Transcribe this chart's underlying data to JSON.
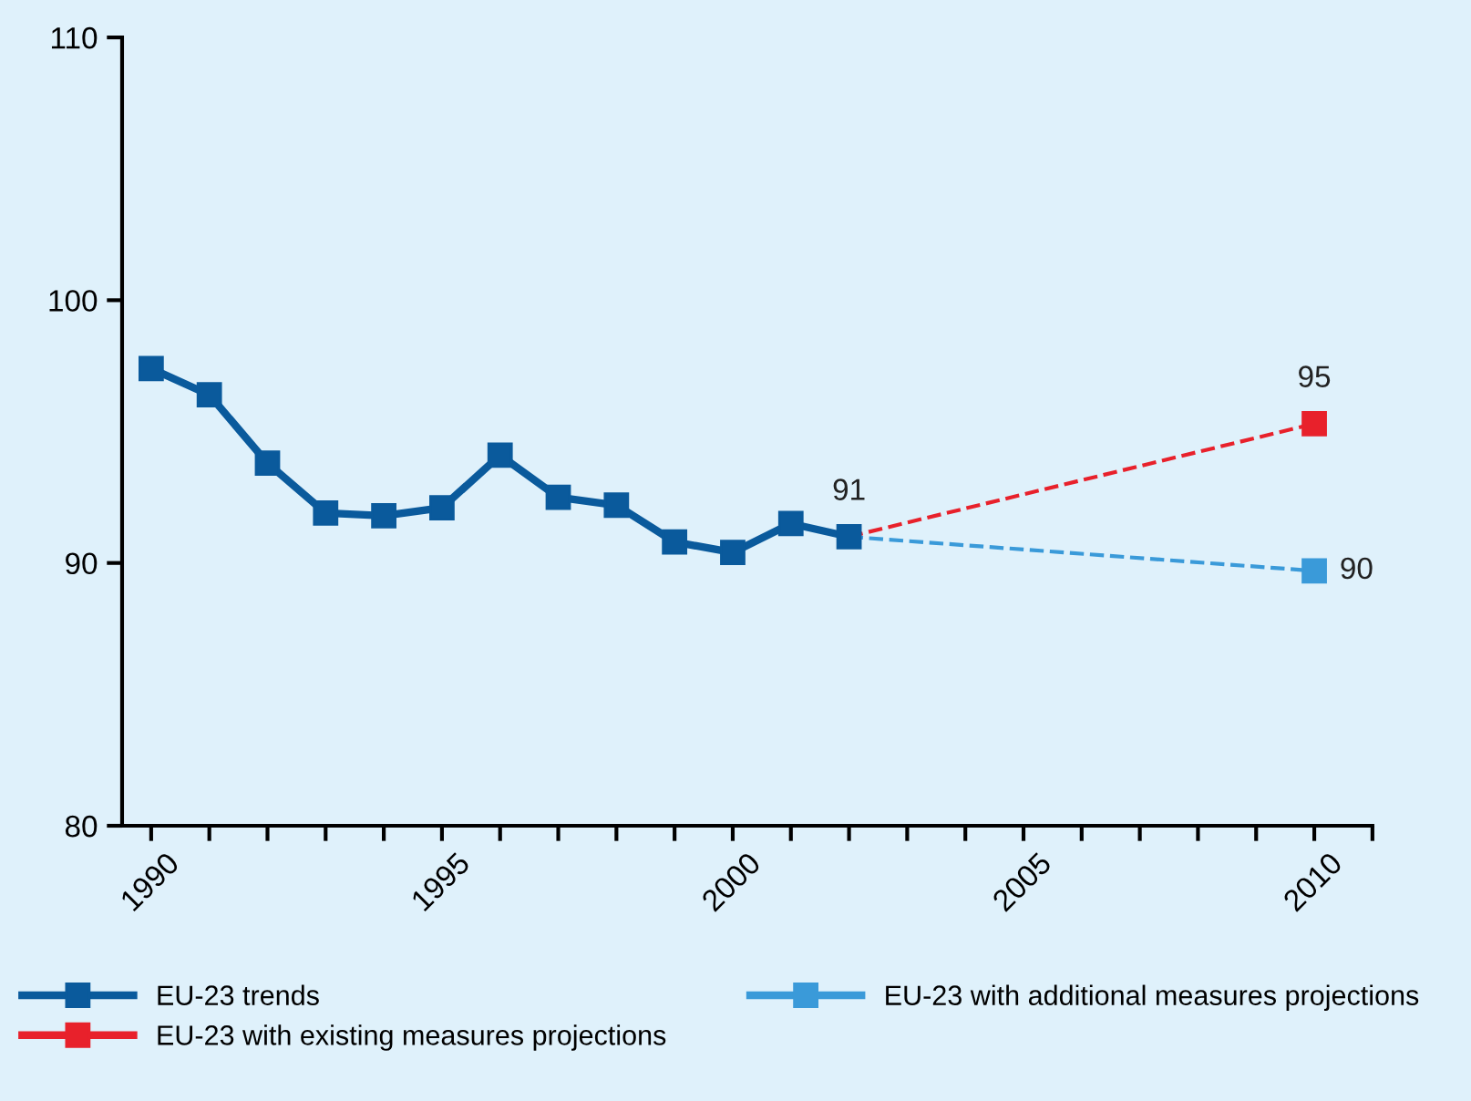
{
  "chart_data": {
    "type": "line",
    "x": [
      1990,
      1991,
      1992,
      1993,
      1994,
      1995,
      1996,
      1997,
      1998,
      1999,
      2000,
      2001,
      2002
    ],
    "series": [
      {
        "name": "EU-23 trends",
        "color": "#0a5a9c",
        "values": [
          97.4,
          96.4,
          93.8,
          91.9,
          91.8,
          92.1,
          94.1,
          92.5,
          92.2,
          90.8,
          90.4,
          91.5,
          91.0
        ],
        "value_labels": [
          null,
          null,
          null,
          null,
          null,
          null,
          null,
          null,
          null,
          null,
          null,
          null,
          "91"
        ],
        "line_style": "solid"
      },
      {
        "name": "EU-23 with existing measures projections",
        "color": "#e8212b",
        "x": [
          2010
        ],
        "values": [
          95.3
        ],
        "value_labels": [
          "95"
        ],
        "line_style": "dashed"
      },
      {
        "name": "EU-23 with additional measures projections",
        "color": "#3a9ad9",
        "x": [
          2010
        ],
        "values": [
          89.7
        ],
        "value_labels": [
          "90"
        ],
        "line_style": "dashed"
      }
    ],
    "marker": "square",
    "xlim": [
      1989.5,
      2011
    ],
    "ylim": [
      80,
      110
    ],
    "yticks": [
      80,
      90,
      100,
      110
    ],
    "xticks": [
      1990,
      {
        "value": 1991,
        "label": null
      },
      {
        "value": 1992,
        "label": null
      },
      {
        "value": 1993,
        "label": null
      },
      {
        "value": 1994,
        "label": null
      },
      1995,
      {
        "value": 1996,
        "label": null
      },
      {
        "value": 1997,
        "label": null
      },
      {
        "value": 1998,
        "label": null
      },
      {
        "value": 1999,
        "label": null
      },
      2000,
      {
        "value": 2001,
        "label": null
      },
      {
        "value": 2002,
        "label": null
      },
      {
        "value": 2003,
        "label": null
      },
      {
        "value": 2004,
        "label": null
      },
      2005,
      {
        "value": 2006,
        "label": null
      },
      {
        "value": 2007,
        "label": null
      },
      {
        "value": 2008,
        "label": null
      },
      {
        "value": 2009,
        "label": null
      },
      2010,
      {
        "value": 2011,
        "label": null
      }
    ],
    "grid": false,
    "legend": "bottom"
  }
}
